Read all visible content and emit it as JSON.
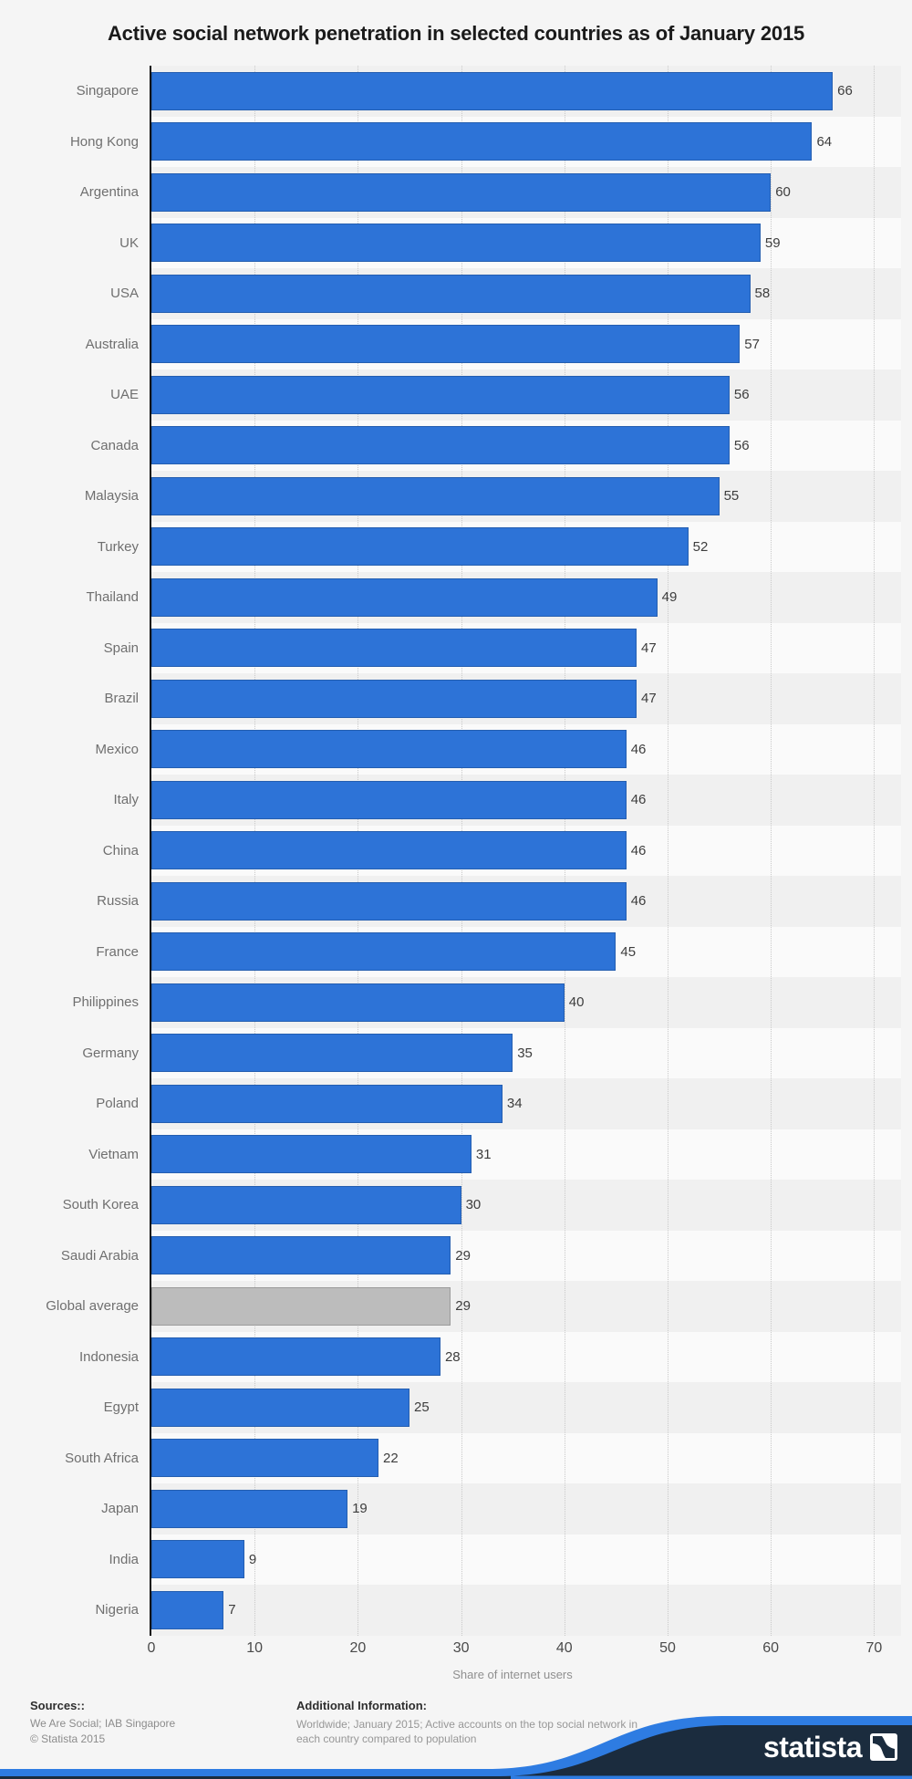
{
  "page": {
    "background": "#f5f5f5",
    "accent_blue": "#2d73d7",
    "navy": "#1b2c3e",
    "ribbon_blue": "#2e7ce2"
  },
  "title": "Active social network penetration in selected countries as of January 2015",
  "chart_data": {
    "type": "bar",
    "orientation": "horizontal",
    "title": "Active social network penetration in selected countries as of January 2015",
    "categories": [
      "Singapore",
      "Hong Kong",
      "Argentina",
      "UK",
      "USA",
      "Australia",
      "UAE",
      "Canada",
      "Malaysia",
      "Turkey",
      "Thailand",
      "Spain",
      "Brazil",
      "Mexico",
      "Italy",
      "China",
      "Russia",
      "France",
      "Philippines",
      "Germany",
      "Poland",
      "Vietnam",
      "South Korea",
      "Saudi Arabia",
      "Global average",
      "Indonesia",
      "Egypt",
      "South Africa",
      "Japan",
      "India",
      "Nigeria"
    ],
    "values": [
      66,
      64,
      60,
      59,
      58,
      57,
      56,
      56,
      55,
      52,
      49,
      47,
      47,
      46,
      46,
      46,
      46,
      45,
      40,
      35,
      34,
      31,
      30,
      29,
      29,
      28,
      25,
      22,
      19,
      9,
      7
    ],
    "highlight_category": "Global average",
    "bar_color": "#2d73d7",
    "highlight_bar_color": "#bcbcbc",
    "xlabel": "Share of internet users",
    "xlim": [
      0,
      70
    ],
    "xticks": [
      0,
      10,
      20,
      30,
      40,
      50,
      60,
      70
    ],
    "gridlines": "dotted-vertical",
    "row_stripe_colors": [
      "#f0f0f0",
      "#fafafa"
    ],
    "legend": "none"
  },
  "footer": {
    "sources_label": "Sources::",
    "sources_line1": "We Are Social; IAB Singapore",
    "sources_line2": "© Statista 2015",
    "additional_label": "Additional Information:",
    "additional_text": "Worldwide; January 2015; Active accounts on the top social network in each country compared to population"
  },
  "logo": {
    "text": "statista",
    "icon": "statista-wave-icon"
  }
}
